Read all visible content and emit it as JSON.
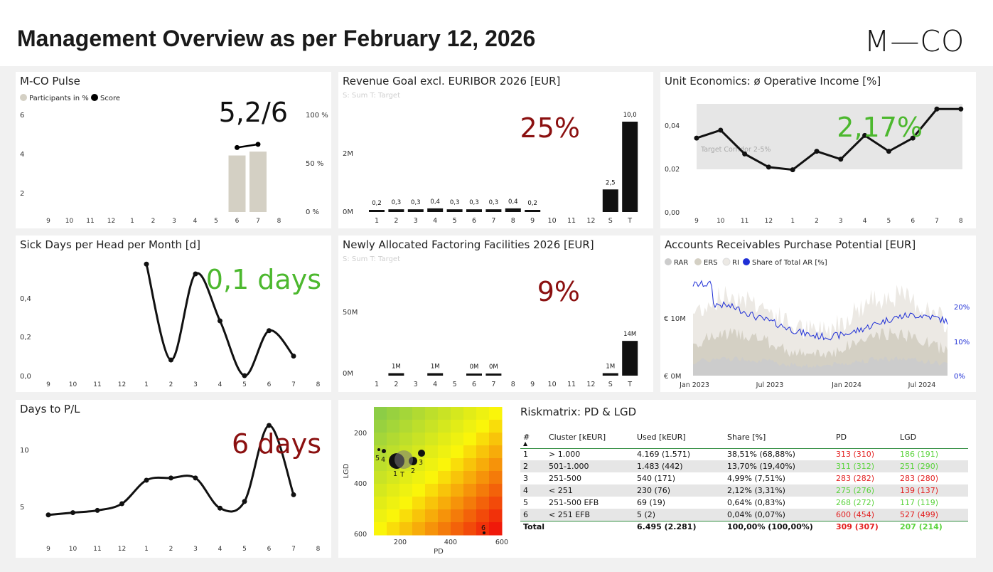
{
  "header": {
    "title": "Management Overview as per February 12, 2026",
    "logo": "M—CO"
  },
  "pulse": {
    "title": "M-CO Pulse",
    "legend": [
      {
        "label": "Participants in %",
        "color": "#d4d0c4"
      },
      {
        "label": "Score",
        "color": "#000000"
      }
    ],
    "kpi": "5,2/6",
    "kpi_color": "#111111",
    "chart_data": {
      "type": "bar",
      "categories": [
        "9",
        "10",
        "11",
        "12",
        "1",
        "2",
        "3",
        "4",
        "5",
        "6",
        "7",
        "8"
      ],
      "series": [
        {
          "name": "Participants in %",
          "values": [
            null,
            null,
            null,
            null,
            null,
            null,
            null,
            null,
            null,
            58,
            62,
            null
          ]
        },
        {
          "name": "Score",
          "values": [
            null,
            null,
            null,
            null,
            null,
            null,
            null,
            null,
            null,
            5.15,
            5.35,
            null
          ]
        }
      ],
      "y_left_ticks": [
        "6",
        "4",
        "2"
      ],
      "y_right_ticks": [
        "100 %",
        "50 %",
        "0 %"
      ]
    }
  },
  "revenue": {
    "title": "Revenue Goal excl. EURIBOR 2026 [EUR]",
    "subtitle": "S: Sum  T: Target",
    "kpi": "25%",
    "kpi_color": "#8b1010",
    "chart_data": {
      "type": "bar",
      "categories": [
        "1",
        "2",
        "3",
        "4",
        "5",
        "6",
        "7",
        "8",
        "9",
        "10",
        "11",
        "12",
        "S",
        "T"
      ],
      "values": [
        0.2,
        0.3,
        0.3,
        0.4,
        0.3,
        0.3,
        0.3,
        0.4,
        0.2,
        null,
        null,
        null,
        2.5,
        10.0
      ],
      "labels": [
        "0,2",
        "0,3",
        "0,3",
        "0,4",
        "0,3",
        "0,3",
        "0,3",
        "0,4",
        "0,2",
        "",
        "",
        "",
        "2,5",
        "10,0"
      ],
      "y_ticks": [
        "2M",
        "0M"
      ]
    }
  },
  "unit": {
    "title": "Unit Economics: ø Operative Income [%]",
    "kpi": "2,17%",
    "kpi_color": "#4cb82e",
    "corridor_label": "Target Corridor 2-5%",
    "chart_data": {
      "type": "line",
      "categories": [
        "9",
        "10",
        "11",
        "12",
        "1",
        "2",
        "3",
        "4",
        "5",
        "6",
        "7",
        "8"
      ],
      "values": [
        0.028,
        0.031,
        0.022,
        0.017,
        0.016,
        0.023,
        0.02,
        0.029,
        0.023,
        0.028,
        0.039,
        0.039
      ],
      "y_ticks": [
        "0,04",
        "0,02",
        "0,00"
      ]
    }
  },
  "sick": {
    "title": "Sick Days per Head per Month [d]",
    "kpi": "0,1 days",
    "kpi_color": "#4cb82e",
    "chart_data": {
      "type": "line",
      "categories": [
        "9",
        "10",
        "11",
        "12",
        "1",
        "2",
        "3",
        "4",
        "5",
        "6",
        "7",
        "8"
      ],
      "values": [
        null,
        null,
        null,
        null,
        0.57,
        0.08,
        0.52,
        0.28,
        0.0,
        0.23,
        0.1,
        null
      ],
      "y_ticks": [
        "0,4",
        "0,2",
        "0,0"
      ]
    }
  },
  "factoring": {
    "title": "Newly Allocated Factoring Facilities 2026 [EUR]",
    "subtitle": "S: Sum  T: Target",
    "kpi": "9%",
    "kpi_color": "#8b1010",
    "chart_data": {
      "type": "bar",
      "categories": [
        "1",
        "2",
        "3",
        "4",
        "5",
        "6",
        "7",
        "8",
        "9",
        "10",
        "11",
        "12",
        "S",
        "T"
      ],
      "values": [
        null,
        1,
        null,
        1,
        null,
        0,
        0,
        null,
        null,
        null,
        null,
        null,
        1,
        14
      ],
      "labels": [
        "",
        "1M",
        "",
        "1M",
        "",
        "0M",
        "0M",
        "",
        "",
        "",
        "",
        "",
        "1M",
        "14M"
      ],
      "y_ticks": [
        "50M",
        "0M"
      ]
    }
  },
  "ar": {
    "title": "Accounts Receivables Purchase Potential [EUR]",
    "legend": [
      {
        "label": "RAR",
        "color": "#cccccc"
      },
      {
        "label": "ERS",
        "color": "#d4d0c4"
      },
      {
        "label": "RI",
        "color": "#ece9e4"
      },
      {
        "label": "Share of Total AR [%]",
        "color": "#1f2fd6"
      }
    ],
    "chart_data": {
      "type": "area",
      "x_ticks": [
        "Jan 2023",
        "Jul 2023",
        "Jan 2024",
        "Jul 2024"
      ],
      "y_left_ticks": [
        "€ 10M",
        "€ 0M"
      ],
      "y_right_ticks": [
        "20%",
        "10%",
        "0%"
      ]
    }
  },
  "days_pl": {
    "title": "Days to P/L",
    "kpi": "6 days",
    "kpi_color": "#8b1010",
    "chart_data": {
      "type": "line",
      "categories": [
        "9",
        "10",
        "11",
        "12",
        "1",
        "2",
        "3",
        "4",
        "5",
        "6",
        "7",
        "8"
      ],
      "values": [
        3.8,
        4.0,
        4.2,
        4.8,
        6.9,
        7.1,
        7.1,
        4.4,
        5.0,
        11.8,
        5.6,
        null
      ],
      "y_ticks": [
        "10",
        "5"
      ]
    }
  },
  "risk": {
    "title": "Riskmatrix: PD & LGD",
    "matrix": {
      "xlabel": "PD",
      "ylabel": "LGD",
      "x_ticks": [
        "200",
        "400",
        "600"
      ],
      "y_ticks": [
        "200",
        "400",
        "600"
      ],
      "points": [
        {
          "label": "1",
          "pd": 313,
          "lgd": 186
        },
        {
          "label": "2",
          "pd": 311,
          "lgd": 251
        },
        {
          "label": "3",
          "pd": 283,
          "lgd": 283
        },
        {
          "label": "4",
          "pd": 275,
          "lgd": 139
        },
        {
          "label": "5",
          "pd": 268,
          "lgd": 117
        },
        {
          "label": "6",
          "pd": 600,
          "lgd": 527
        },
        {
          "label": "T",
          "pd": 309,
          "lgd": 207
        }
      ]
    },
    "table": {
      "headers": [
        "#",
        "Cluster [kEUR]",
        "Used [kEUR]",
        "Share [%]",
        "PD",
        "LGD"
      ],
      "rows": [
        {
          "n": "1",
          "cluster": "> 1.000",
          "used": "4.169 (1.571)",
          "share": "38,51% (68,88%)",
          "pd": "313 (310)",
          "lgd": "186 (191)",
          "pd_c": "red",
          "lgd_c": "green"
        },
        {
          "n": "2",
          "cluster": "501-1.000",
          "used": "1.483 (442)",
          "share": "13,70% (19,40%)",
          "pd": "311 (312)",
          "lgd": "251 (290)",
          "pd_c": "green",
          "lgd_c": "green"
        },
        {
          "n": "3",
          "cluster": "251-500",
          "used": "540 (171)",
          "share": "4,99% (7,51%)",
          "pd": "283 (282)",
          "lgd": "283 (280)",
          "pd_c": "red",
          "lgd_c": "red"
        },
        {
          "n": "4",
          "cluster": "< 251",
          "used": "230 (76)",
          "share": "2,12% (3,31%)",
          "pd": "275 (276)",
          "lgd": "139 (137)",
          "pd_c": "green",
          "lgd_c": "red"
        },
        {
          "n": "5",
          "cluster": "251-500 EFB",
          "used": "69 (19)",
          "share": "0,64% (0,83%)",
          "pd": "268 (272)",
          "lgd": "117 (119)",
          "pd_c": "green",
          "lgd_c": "green"
        },
        {
          "n": "6",
          "cluster": "< 251 EFB",
          "used": "5 (2)",
          "share": "0,04% (0,07%)",
          "pd": "600 (454)",
          "lgd": "527 (499)",
          "pd_c": "red",
          "lgd_c": "red"
        }
      ],
      "total": {
        "n": "Total",
        "cluster": "",
        "used": "6.495 (2.281)",
        "share": "100,00% (100,00%)",
        "pd": "309 (307)",
        "lgd": "207 (214)",
        "pd_c": "red",
        "lgd_c": "green"
      }
    }
  }
}
